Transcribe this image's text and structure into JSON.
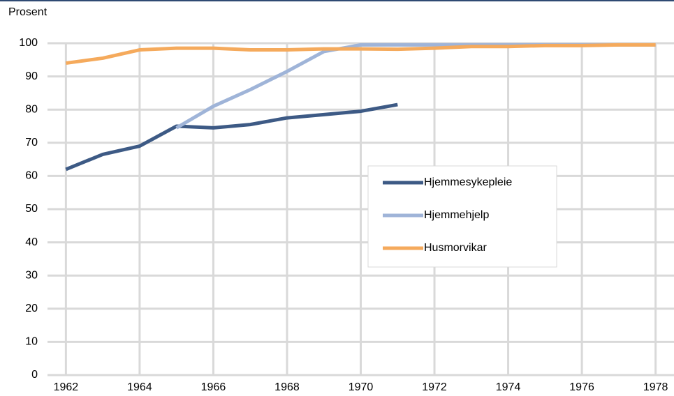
{
  "chart_data": {
    "type": "line",
    "y_label": "Prosent",
    "x": [
      1962,
      1963,
      1964,
      1965,
      1966,
      1967,
      1968,
      1969,
      1970,
      1971,
      1972,
      1973,
      1974,
      1975,
      1976,
      1977,
      1978
    ],
    "series": [
      {
        "name": "Hjemmesykepleie",
        "color": "#3d5a85",
        "values": [
          62,
          66.5,
          69,
          75,
          74.5,
          75.5,
          77.5,
          78.5,
          79.5,
          81.5,
          null,
          null,
          null,
          null,
          null,
          null,
          null
        ]
      },
      {
        "name": "Hjemmehjelp",
        "color": "#9fb4d8",
        "values": [
          null,
          null,
          null,
          74.5,
          81,
          86,
          91.5,
          97.5,
          99.5,
          99.5,
          99.5,
          99.5,
          99.5,
          99.5,
          99.5,
          99.5,
          99.5
        ]
      },
      {
        "name": "Husmorvikar",
        "color": "#f5aa5c",
        "values": [
          94,
          95.5,
          98,
          98.5,
          98.5,
          98,
          98,
          98.3,
          98.3,
          98.2,
          98.5,
          99,
          99,
          99.3,
          99.3,
          99.5,
          99.5
        ]
      }
    ],
    "xlim": [
      1961.5,
      1978.5
    ],
    "xticks": [
      1962,
      1964,
      1966,
      1968,
      1970,
      1972,
      1974,
      1976,
      1978
    ],
    "ylim": [
      0,
      100
    ],
    "yticks": [
      0,
      10,
      20,
      30,
      40,
      50,
      60,
      70,
      80,
      90,
      100
    ],
    "grid": true
  }
}
